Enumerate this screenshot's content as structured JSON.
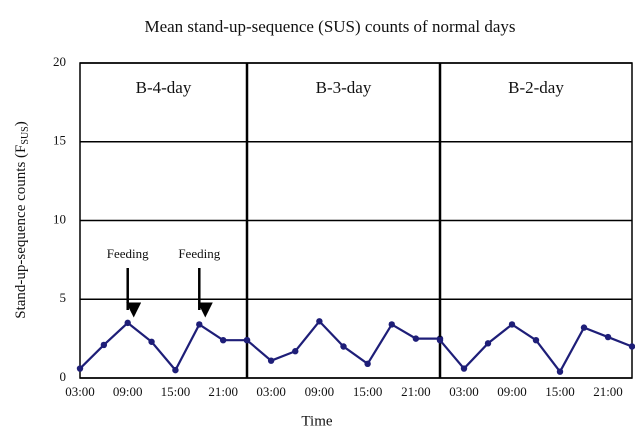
{
  "title": "Mean stand-up-sequence (SUS) counts of normal days",
  "xlabel": "Time",
  "ylabel": [
    "Stand-up-sequence counts (F",
    "SUS",
    ")"
  ],
  "chart_data": [
    {
      "type": "line",
      "subtitle": "B-4-day",
      "xlim": [
        3,
        24
      ],
      "xticks": [
        {
          "value": 3,
          "label": "03:00"
        },
        {
          "value": 9,
          "label": "09:00"
        },
        {
          "value": 15,
          "label": "15:00"
        },
        {
          "value": 21,
          "label": "21:00"
        }
      ],
      "ylim": [
        0,
        20
      ],
      "yticks": [
        0,
        5,
        10,
        15,
        20
      ],
      "x": [
        3,
        6,
        9,
        12,
        15,
        18,
        21,
        24
      ],
      "series": [
        {
          "color": "#1e1e78",
          "values": [
            0.6,
            2.1,
            3.5,
            2.3,
            0.5,
            3.4,
            2.4,
            2.4
          ]
        }
      ],
      "annotations": [
        {
          "text": "Feeding",
          "x": 9
        },
        {
          "text": "Feeding",
          "x": 18
        }
      ]
    },
    {
      "type": "line",
      "subtitle": "B-3-day",
      "xlim": [
        0,
        24
      ],
      "xticks": [
        {
          "value": 3,
          "label": "03:00"
        },
        {
          "value": 9,
          "label": "09:00"
        },
        {
          "value": 15,
          "label": "15:00"
        },
        {
          "value": 21,
          "label": "21:00"
        }
      ],
      "ylim": [
        0,
        20
      ],
      "yticks": [
        0,
        5,
        10,
        15,
        20
      ],
      "x": [
        0,
        3,
        6,
        9,
        12,
        15,
        18,
        21,
        24
      ],
      "series": [
        {
          "color": "#1e1e78",
          "values": [
            2.4,
            1.1,
            1.7,
            3.6,
            2.0,
            0.9,
            3.4,
            2.5,
            2.5
          ]
        }
      ]
    },
    {
      "type": "line",
      "subtitle": "B-2-day",
      "xlim": [
        0,
        24
      ],
      "xticks": [
        {
          "value": 3,
          "label": "03:00"
        },
        {
          "value": 9,
          "label": "09:00"
        },
        {
          "value": 15,
          "label": "15:00"
        },
        {
          "value": 21,
          "label": "21:00"
        }
      ],
      "ylim": [
        0,
        20
      ],
      "yticks": [
        0,
        5,
        10,
        15,
        20
      ],
      "x": [
        0,
        3,
        6,
        9,
        12,
        15,
        18,
        21,
        24
      ],
      "series": [
        {
          "color": "#1e1e78",
          "values": [
            2.4,
            0.6,
            2.2,
            3.4,
            2.4,
            0.4,
            3.2,
            2.6,
            2.0
          ]
        }
      ]
    }
  ]
}
